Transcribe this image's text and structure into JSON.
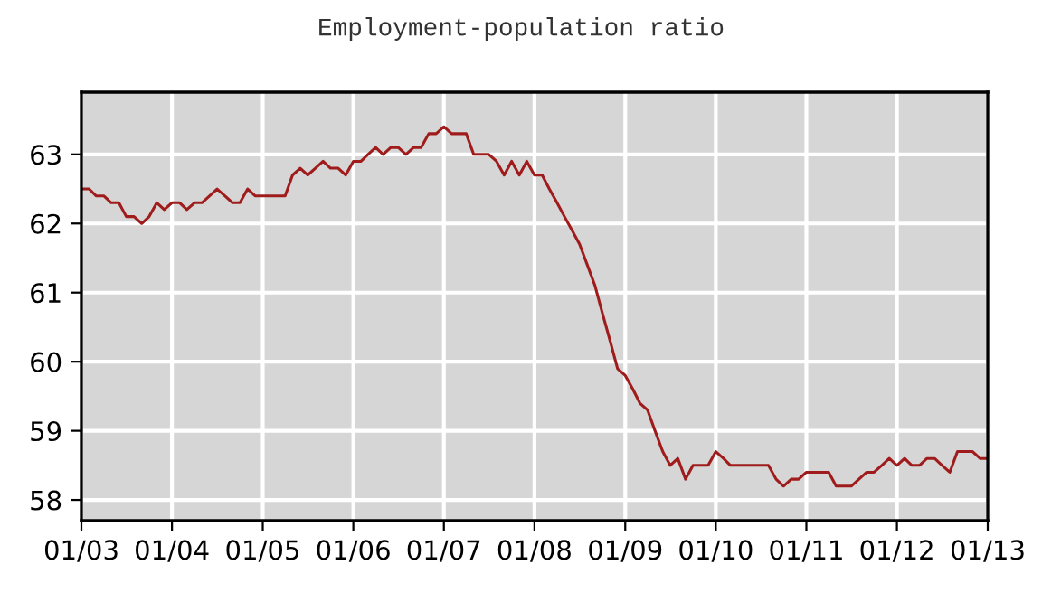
{
  "chart_data": {
    "type": "line",
    "title": "Employment-population ratio",
    "x": [
      "2003-01",
      "2003-02",
      "2003-03",
      "2003-04",
      "2003-05",
      "2003-06",
      "2003-07",
      "2003-08",
      "2003-09",
      "2003-10",
      "2003-11",
      "2003-12",
      "2004-01",
      "2004-02",
      "2004-03",
      "2004-04",
      "2004-05",
      "2004-06",
      "2004-07",
      "2004-08",
      "2004-09",
      "2004-10",
      "2004-11",
      "2004-12",
      "2005-01",
      "2005-02",
      "2005-03",
      "2005-04",
      "2005-05",
      "2005-06",
      "2005-07",
      "2005-08",
      "2005-09",
      "2005-10",
      "2005-11",
      "2005-12",
      "2006-01",
      "2006-02",
      "2006-03",
      "2006-04",
      "2006-05",
      "2006-06",
      "2006-07",
      "2006-08",
      "2006-09",
      "2006-10",
      "2006-11",
      "2006-12",
      "2007-01",
      "2007-02",
      "2007-03",
      "2007-04",
      "2007-05",
      "2007-06",
      "2007-07",
      "2007-08",
      "2007-09",
      "2007-10",
      "2007-11",
      "2007-12",
      "2008-01",
      "2008-02",
      "2008-03",
      "2008-04",
      "2008-05",
      "2008-06",
      "2008-07",
      "2008-08",
      "2008-09",
      "2008-10",
      "2008-11",
      "2008-12",
      "2009-01",
      "2009-02",
      "2009-03",
      "2009-04",
      "2009-05",
      "2009-06",
      "2009-07",
      "2009-08",
      "2009-09",
      "2009-10",
      "2009-11",
      "2009-12",
      "2010-01",
      "2010-02",
      "2010-03",
      "2010-04",
      "2010-05",
      "2010-06",
      "2010-07",
      "2010-08",
      "2010-09",
      "2010-10",
      "2010-11",
      "2010-12",
      "2011-01",
      "2011-02",
      "2011-03",
      "2011-04",
      "2011-05",
      "2011-06",
      "2011-07",
      "2011-08",
      "2011-09",
      "2011-10",
      "2011-11",
      "2011-12",
      "2012-01",
      "2012-02",
      "2012-03",
      "2012-04",
      "2012-05",
      "2012-06",
      "2012-07",
      "2012-08",
      "2012-09",
      "2012-10",
      "2012-11",
      "2012-12",
      "2013-01"
    ],
    "series": [
      {
        "color": "#a01c1c",
        "values": [
          62.5,
          62.5,
          62.4,
          62.4,
          62.3,
          62.3,
          62.1,
          62.1,
          62.0,
          62.1,
          62.3,
          62.2,
          62.3,
          62.3,
          62.2,
          62.3,
          62.3,
          62.4,
          62.5,
          62.4,
          62.3,
          62.3,
          62.5,
          62.4,
          62.4,
          62.4,
          62.4,
          62.4,
          62.7,
          62.8,
          62.7,
          62.8,
          62.9,
          62.8,
          62.8,
          62.7,
          62.9,
          62.9,
          63.0,
          63.1,
          63.0,
          63.1,
          63.1,
          63.0,
          63.1,
          63.1,
          63.3,
          63.3,
          63.4,
          63.3,
          63.3,
          63.3,
          63.0,
          63.0,
          63.0,
          62.9,
          62.7,
          62.9,
          62.7,
          62.9,
          62.7,
          62.7,
          62.5,
          62.3,
          62.1,
          61.9,
          61.7,
          61.4,
          61.1,
          60.7,
          60.3,
          59.9,
          59.8,
          59.6,
          59.4,
          59.3,
          59.0,
          58.7,
          58.5,
          58.6,
          58.3,
          58.5,
          58.5,
          58.5,
          58.7,
          58.6,
          58.5,
          58.5,
          58.5,
          58.5,
          58.5,
          58.5,
          58.3,
          58.2,
          58.3,
          58.3,
          58.4,
          58.4,
          58.4,
          58.4,
          58.2,
          58.2,
          58.2,
          58.3,
          58.4,
          58.4,
          58.5,
          58.6,
          58.5,
          58.6,
          58.5,
          58.5,
          58.6,
          58.6,
          58.5,
          58.4,
          58.7,
          58.7,
          58.7,
          58.6,
          58.6
        ]
      }
    ],
    "xlim": [
      "2003-01",
      "2013-01"
    ],
    "xticks": [
      {
        "value": "2003-01",
        "label": "01/03"
      },
      {
        "value": "2004-01",
        "label": "01/04"
      },
      {
        "value": "2005-01",
        "label": "01/05"
      },
      {
        "value": "2006-01",
        "label": "01/06"
      },
      {
        "value": "2007-01",
        "label": "01/07"
      },
      {
        "value": "2008-01",
        "label": "01/08"
      },
      {
        "value": "2009-01",
        "label": "01/09"
      },
      {
        "value": "2010-01",
        "label": "01/10"
      },
      {
        "value": "2011-01",
        "label": "01/11"
      },
      {
        "value": "2012-01",
        "label": "01/12"
      },
      {
        "value": "2013-01",
        "label": "01/13"
      }
    ],
    "ylim": [
      57.7,
      63.9
    ],
    "yticks": [
      58,
      59,
      60,
      61,
      62,
      63
    ],
    "grid": true
  }
}
